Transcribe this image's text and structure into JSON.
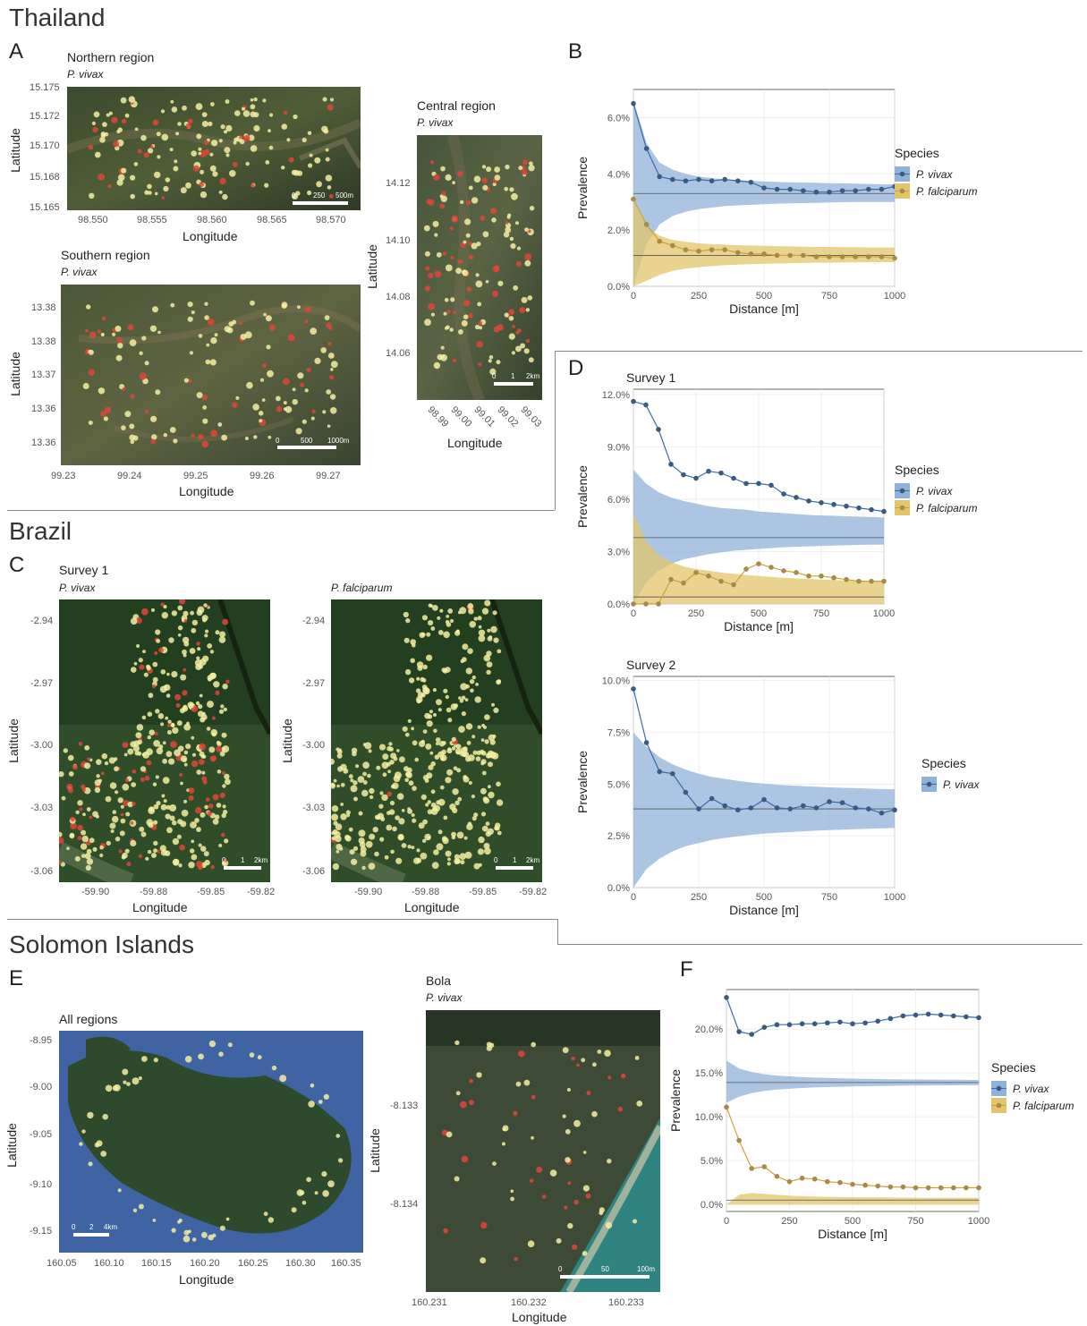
{
  "sections": {
    "thailand": "Thailand",
    "brazil": "Brazil",
    "solomon": "Solomon Islands"
  },
  "letters": {
    "a": "A",
    "b": "B",
    "c": "C",
    "d": "D",
    "e": "E",
    "f": "F"
  },
  "maps": {
    "northern": {
      "title": "Northern region",
      "species": "P. vivax",
      "yticks": [
        "15.175",
        "15.172",
        "15.170",
        "15.168",
        "15.165"
      ],
      "xticks": [
        "98.550",
        "98.555",
        "98.560",
        "98.565",
        "98.570"
      ],
      "xlabel": "Longitude",
      "ylabel": "Latitude",
      "scale": [
        "0",
        "250",
        "500m"
      ]
    },
    "southern": {
      "title": "Southern region",
      "species": "P. vivax",
      "yticks": [
        "13.38",
        "13.38",
        "13.37",
        "13.36",
        "13.36"
      ],
      "xticks": [
        "99.23",
        "99.24",
        "99.25",
        "99.26",
        "99.27"
      ],
      "xlabel": "Longitude",
      "ylabel": "Latitude",
      "scale": [
        "0",
        "500",
        "1000m"
      ]
    },
    "central": {
      "title": "Central region",
      "species": "P. vivax",
      "yticks": [
        "14.12",
        "14.10",
        "14.08",
        "14.06"
      ],
      "xticks": [
        "98.99",
        "99.00",
        "99.01",
        "99.02",
        "99.03"
      ],
      "xlabel": "Longitude",
      "ylabel": "Latitude",
      "scale": [
        "0",
        "1",
        "2km"
      ]
    },
    "brazil_vivax": {
      "title": "Survey 1",
      "species": "P. vivax",
      "yticks": [
        "-2.94",
        "-2.97",
        "-3.00",
        "-3.03",
        "-3.06"
      ],
      "xticks": [
        "-59.90",
        "-59.88",
        "-59.85",
        "-59.82"
      ],
      "xlabel": "Longitude",
      "ylabel": "Latitude",
      "scale": [
        "0",
        "1",
        "2km"
      ]
    },
    "brazil_falc": {
      "species": "P. falciparum",
      "yticks": [
        "-2.94",
        "-2.97",
        "-3.00",
        "-3.03",
        "-3.06"
      ],
      "xticks": [
        "-59.90",
        "-59.88",
        "-59.85",
        "-59.82"
      ],
      "xlabel": "Longitude",
      "ylabel": "Latitude",
      "scale": [
        "0",
        "1",
        "2km"
      ]
    },
    "solomon_all": {
      "title": "All regions",
      "yticks": [
        "-8.95",
        "-9.00",
        "-9.05",
        "-9.10",
        "-9.15"
      ],
      "xticks": [
        "160.05",
        "160.10",
        "160.15",
        "160.20",
        "160.25",
        "160.30",
        "160.35"
      ],
      "xlabel": "Longitude",
      "ylabel": "Latitude",
      "scale": [
        "0",
        "2",
        "4km"
      ]
    },
    "bola": {
      "title": "Bola",
      "species": "P. vivax",
      "yticks": [
        "-8.133",
        "-8.134"
      ],
      "xticks": [
        "160.231",
        "160.232",
        "160.233"
      ],
      "xlabel": "Longitude",
      "ylabel": "Latitude",
      "scale": [
        "0",
        "50",
        "100m"
      ]
    }
  },
  "colors": {
    "vivax": "#3e6aa5",
    "falciparum": "#c9a43a",
    "vivax_band": "#8fb2d9",
    "falc_band": "#e3c46a"
  },
  "chart_data": [
    {
      "id": "B",
      "type": "line",
      "xlabel": "Distance [m]",
      "ylabel": "Prevalence",
      "xlim": [
        0,
        1000
      ],
      "ylim": [
        0,
        7
      ],
      "yunit": "%",
      "xticks": [
        "0",
        "250",
        "500",
        "750",
        "1000"
      ],
      "yticks": [
        "0.0%",
        "2.0%",
        "4.0%",
        "6.0%"
      ],
      "ytickvals": [
        0,
        2,
        4,
        6
      ],
      "legend_title": "Species",
      "legend_position": "right",
      "x": [
        0,
        50,
        100,
        150,
        200,
        250,
        300,
        350,
        400,
        450,
        500,
        550,
        600,
        650,
        700,
        750,
        800,
        850,
        900,
        950,
        1000
      ],
      "series": [
        {
          "name": "P. vivax",
          "key": "vivax",
          "baseline": 3.3,
          "values": [
            6.5,
            4.9,
            3.9,
            3.8,
            3.75,
            3.8,
            3.75,
            3.8,
            3.75,
            3.7,
            3.5,
            3.45,
            3.45,
            3.4,
            3.35,
            3.35,
            3.4,
            3.4,
            3.45,
            3.45,
            3.55
          ],
          "band_low": [
            0,
            1.5,
            2.2,
            2.5,
            2.65,
            2.75,
            2.8,
            2.85,
            2.88,
            2.9,
            2.92,
            2.94,
            2.95,
            2.96,
            2.97,
            2.98,
            2.99,
            3.0,
            3.0,
            3.0,
            3.0
          ],
          "band_high": [
            6.6,
            5.1,
            4.4,
            4.15,
            4.0,
            3.9,
            3.85,
            3.8,
            3.78,
            3.75,
            3.73,
            3.71,
            3.7,
            3.69,
            3.68,
            3.67,
            3.66,
            3.65,
            3.64,
            3.63,
            3.62
          ]
        },
        {
          "name": "P. falciparum",
          "key": "falciparum",
          "baseline": 1.1,
          "values": [
            3.1,
            2.2,
            1.6,
            1.45,
            1.3,
            1.25,
            1.3,
            1.3,
            1.2,
            1.15,
            1.15,
            1.1,
            1.1,
            1.1,
            1.05,
            1.05,
            1.05,
            1.05,
            1.05,
            1.05,
            1.0
          ],
          "band_low": [
            0,
            0.2,
            0.4,
            0.55,
            0.63,
            0.68,
            0.72,
            0.75,
            0.77,
            0.79,
            0.8,
            0.81,
            0.82,
            0.83,
            0.84,
            0.84,
            0.85,
            0.85,
            0.86,
            0.86,
            0.86
          ],
          "band_high": [
            3.2,
            2.1,
            1.8,
            1.65,
            1.58,
            1.53,
            1.5,
            1.48,
            1.46,
            1.45,
            1.44,
            1.43,
            1.42,
            1.41,
            1.4,
            1.4,
            1.39,
            1.39,
            1.38,
            1.38,
            1.38
          ]
        }
      ]
    },
    {
      "id": "D1",
      "type": "line",
      "title": "Survey 1",
      "xlabel": "Distance [m]",
      "ylabel": "Prevalence",
      "xlim": [
        0,
        1000
      ],
      "ylim": [
        0,
        12.3
      ],
      "yunit": "%",
      "xticks": [
        "0",
        "250",
        "500",
        "750",
        "1000"
      ],
      "yticks": [
        "0.0%",
        "3.0%",
        "6.0%",
        "9.0%",
        "12.0%"
      ],
      "ytickvals": [
        0,
        3,
        6,
        9,
        12
      ],
      "legend_title": "Species",
      "legend_position": "right",
      "x": [
        0,
        50,
        100,
        150,
        200,
        250,
        300,
        350,
        400,
        450,
        500,
        550,
        600,
        650,
        700,
        750,
        800,
        850,
        900,
        950,
        1000
      ],
      "series": [
        {
          "name": "P. vivax",
          "key": "vivax",
          "baseline": 3.8,
          "values": [
            11.6,
            11.4,
            10.0,
            8.0,
            7.4,
            7.2,
            7.6,
            7.5,
            7.2,
            6.9,
            6.9,
            6.8,
            6.3,
            6.1,
            5.9,
            5.8,
            5.7,
            5.6,
            5.5,
            5.4,
            5.3
          ],
          "band_low": [
            0,
            1.2,
            1.9,
            2.3,
            2.55,
            2.7,
            2.85,
            2.95,
            3.05,
            3.1,
            3.15,
            3.2,
            3.25,
            3.28,
            3.3,
            3.32,
            3.34,
            3.36,
            3.38,
            3.4,
            3.4
          ],
          "band_high": [
            7.7,
            6.9,
            6.4,
            6.1,
            5.9,
            5.75,
            5.6,
            5.5,
            5.45,
            5.4,
            5.3,
            5.25,
            5.2,
            5.15,
            5.1,
            5.07,
            5.05,
            5.02,
            5.0,
            4.98,
            4.95
          ]
        },
        {
          "name": "P. falciparum",
          "key": "falciparum",
          "baseline": 0.4,
          "values": [
            0,
            0,
            0,
            1.4,
            1.2,
            1.8,
            1.6,
            1.3,
            1.1,
            2.0,
            2.3,
            2.1,
            1.9,
            1.8,
            1.6,
            1.6,
            1.5,
            1.4,
            1.3,
            1.3,
            1.3
          ],
          "band_low": [
            0,
            0,
            0,
            0,
            0,
            0,
            0,
            0,
            0,
            0,
            0,
            0,
            0,
            0,
            0,
            0,
            0,
            0,
            0,
            0,
            0
          ],
          "band_high": [
            5.2,
            3.6,
            2.8,
            2.4,
            2.15,
            2.0,
            1.9,
            1.8,
            1.72,
            1.66,
            1.6,
            1.55,
            1.5,
            1.46,
            1.43,
            1.4,
            1.37,
            1.35,
            1.33,
            1.31,
            1.3
          ]
        }
      ]
    },
    {
      "id": "D2",
      "type": "line",
      "title": "Survey 2",
      "xlabel": "Distance [m]",
      "ylabel": "Prevalence",
      "xlim": [
        0,
        1000
      ],
      "ylim": [
        0,
        10.2
      ],
      "yunit": "%",
      "xticks": [
        "0",
        "250",
        "500",
        "750",
        "1000"
      ],
      "yticks": [
        "0.0%",
        "2.5%",
        "5.0%",
        "7.5%",
        "10.0%"
      ],
      "ytickvals": [
        0,
        2.5,
        5,
        7.5,
        10
      ],
      "legend_title": "Species",
      "legend_position": "right",
      "x": [
        0,
        50,
        100,
        150,
        200,
        250,
        300,
        350,
        400,
        450,
        500,
        550,
        600,
        650,
        700,
        750,
        800,
        850,
        900,
        950,
        1000
      ],
      "series": [
        {
          "name": "P. vivax",
          "key": "vivax",
          "baseline": 3.8,
          "values": [
            9.6,
            7.0,
            5.6,
            5.5,
            4.6,
            3.8,
            4.3,
            3.95,
            3.75,
            3.85,
            4.25,
            3.85,
            3.8,
            3.95,
            3.85,
            4.15,
            4.1,
            3.85,
            3.8,
            3.6,
            3.75
          ],
          "band_low": [
            0,
            0.9,
            1.4,
            1.75,
            2.0,
            2.15,
            2.3,
            2.4,
            2.48,
            2.55,
            2.6,
            2.65,
            2.68,
            2.72,
            2.75,
            2.78,
            2.8,
            2.82,
            2.84,
            2.86,
            2.88
          ],
          "band_high": [
            7.5,
            6.8,
            6.3,
            5.95,
            5.7,
            5.5,
            5.35,
            5.25,
            5.15,
            5.08,
            5.02,
            4.97,
            4.93,
            4.9,
            4.87,
            4.84,
            4.82,
            4.8,
            4.78,
            4.76,
            4.75
          ]
        }
      ]
    },
    {
      "id": "F",
      "type": "line",
      "xlabel": "Distance [m]",
      "ylabel": "Prevalence",
      "xlim": [
        0,
        1000
      ],
      "ylim": [
        -0.8,
        24.5
      ],
      "yunit": "%",
      "xticks": [
        "0",
        "250",
        "500",
        "750",
        "1000"
      ],
      "yticks": [
        "0.0%",
        "5.0%",
        "10.0%",
        "15.0%",
        "20.0%"
      ],
      "ytickvals": [
        0,
        5,
        10,
        15,
        20
      ],
      "legend_title": "Species",
      "legend_position": "right",
      "x": [
        0,
        50,
        100,
        150,
        200,
        250,
        300,
        350,
        400,
        450,
        500,
        550,
        600,
        650,
        700,
        750,
        800,
        850,
        900,
        950,
        1000
      ],
      "series": [
        {
          "name": "P. vivax",
          "key": "vivax",
          "baseline": 13.9,
          "values": [
            23.6,
            19.7,
            19.4,
            20.2,
            20.5,
            20.5,
            20.6,
            20.6,
            20.7,
            20.8,
            20.6,
            20.7,
            20.9,
            21.2,
            21.5,
            21.6,
            21.7,
            21.6,
            21.5,
            21.4,
            21.3
          ],
          "band_low": [
            11.6,
            12.3,
            12.7,
            12.95,
            13.1,
            13.2,
            13.28,
            13.34,
            13.38,
            13.42,
            13.45,
            13.48,
            13.5,
            13.52,
            13.54,
            13.55,
            13.56,
            13.57,
            13.58,
            13.59,
            13.6
          ],
          "band_high": [
            16.4,
            15.5,
            15.1,
            14.85,
            14.7,
            14.6,
            14.52,
            14.46,
            14.42,
            14.38,
            14.35,
            14.32,
            14.3,
            14.28,
            14.26,
            14.25,
            14.24,
            14.23,
            14.22,
            14.21,
            14.2
          ]
        },
        {
          "name": "P. falciparum",
          "key": "falciparum",
          "baseline": 0.5,
          "values": [
            11.1,
            7.3,
            4.1,
            4.3,
            3.2,
            2.6,
            3.0,
            2.9,
            2.6,
            2.5,
            2.3,
            2.2,
            2.1,
            2.0,
            2.0,
            1.9,
            1.9,
            1.9,
            1.9,
            1.9,
            1.9
          ],
          "band_low": [
            0,
            0,
            0,
            0,
            0,
            0,
            0,
            0,
            0,
            0,
            0,
            0,
            0,
            0,
            0,
            0,
            0,
            0,
            0,
            0,
            0
          ],
          "band_high": [
            0,
            1.1,
            1.3,
            1.2,
            1.1,
            1.0,
            0.95,
            0.9,
            0.87,
            0.85,
            0.83,
            0.81,
            0.8,
            0.79,
            0.78,
            0.77,
            0.76,
            0.76,
            0.75,
            0.75,
            0.75
          ]
        }
      ]
    }
  ]
}
